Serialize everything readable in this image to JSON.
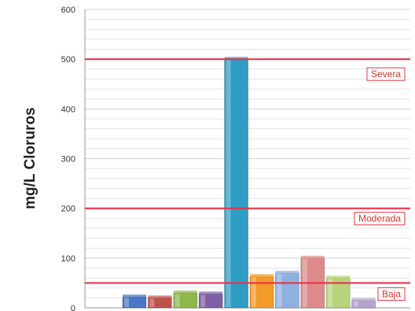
{
  "chart_data": {
    "type": "bar",
    "title": "",
    "xlabel": "",
    "ylabel": "mg/L Cloruros",
    "ylim": [
      0,
      600
    ],
    "yticks": [
      0,
      100,
      200,
      300,
      400,
      500,
      600
    ],
    "grid": true,
    "bars": [
      {
        "value": 22,
        "color": "#4a76c4"
      },
      {
        "value": 20,
        "color": "#c0504d"
      },
      {
        "value": 30,
        "color": "#8eb84a"
      },
      {
        "value": 28,
        "color": "#7e5fa4"
      },
      {
        "value": 500,
        "color": "#2e9ec4"
      },
      {
        "value": 63,
        "color": "#f39a2b"
      },
      {
        "value": 70,
        "color": "#8fb1e0"
      },
      {
        "value": 100,
        "color": "#de8a8a"
      },
      {
        "value": 60,
        "color": "#b8d47c"
      },
      {
        "value": 15,
        "color": "#b3a4cf"
      }
    ],
    "thresholds": [
      {
        "label": "Severa",
        "value": 500,
        "color": "#e8344a"
      },
      {
        "label": "Moderada",
        "value": 200,
        "color": "#e8344a"
      },
      {
        "label": "Baja",
        "value": 50,
        "color": "#e8344a"
      }
    ]
  }
}
